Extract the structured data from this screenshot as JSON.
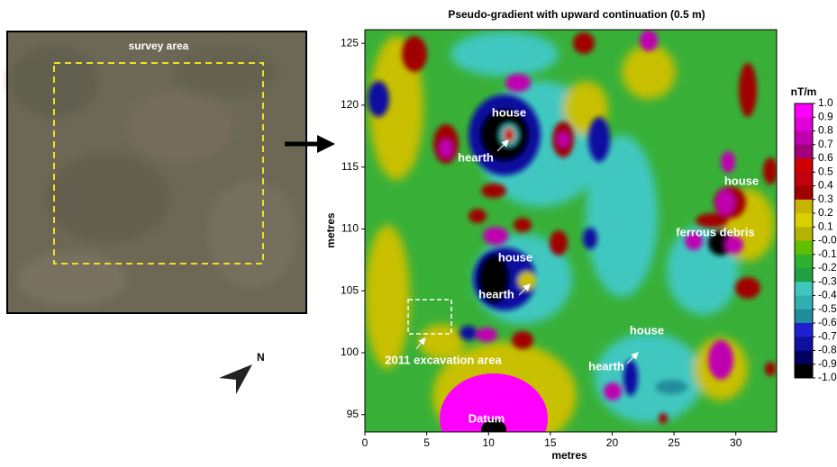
{
  "photo": {
    "label": "survey area",
    "north_label": "N"
  },
  "map": {
    "title": "Pseudo-gradient with upward continuation (0.5 m)",
    "x_label": "metres",
    "y_label": "metres",
    "xlim": [
      0,
      33.3
    ],
    "ylim": [
      93.6,
      126.1
    ],
    "xticks": [
      0,
      5,
      10,
      15,
      20,
      25,
      30
    ],
    "yticks": [
      95,
      100,
      105,
      110,
      115,
      120,
      125
    ],
    "annotations": [
      "house",
      "hearth",
      "house",
      "hearth",
      "house",
      "hearth",
      "house",
      "ferrous debris",
      "2011 excavation area",
      "Datum"
    ],
    "colorbar": {
      "label": "nT/m",
      "lim": [
        -1,
        1
      ],
      "ticks": [
        {
          "value": 1,
          "label": "1.0"
        },
        0.9,
        0.8,
        0.7,
        0.6,
        0.5,
        0.4,
        0.3,
        0.2,
        0.1,
        {
          "value": 0,
          "label": "-0.0"
        },
        -0.1,
        -0.2,
        -0.3,
        -0.4,
        -0.5,
        -0.6,
        -0.7,
        -0.8,
        -0.9,
        {
          "value": -1,
          "label": "-1.0"
        }
      ],
      "colors": [
        "#ff00ff",
        "#e000d8",
        "#c000b0",
        "#a00078",
        "#d00000",
        "#c00010",
        "#a00000",
        "#c8b400",
        "#d8d000",
        "#b4b400",
        "#60c000",
        "#30b030",
        "#20a040",
        "#40c8c0",
        "#30b0b0",
        "#208c9c",
        "#2020d0",
        "#1010a0",
        "#000060",
        "#000000"
      ]
    }
  }
}
